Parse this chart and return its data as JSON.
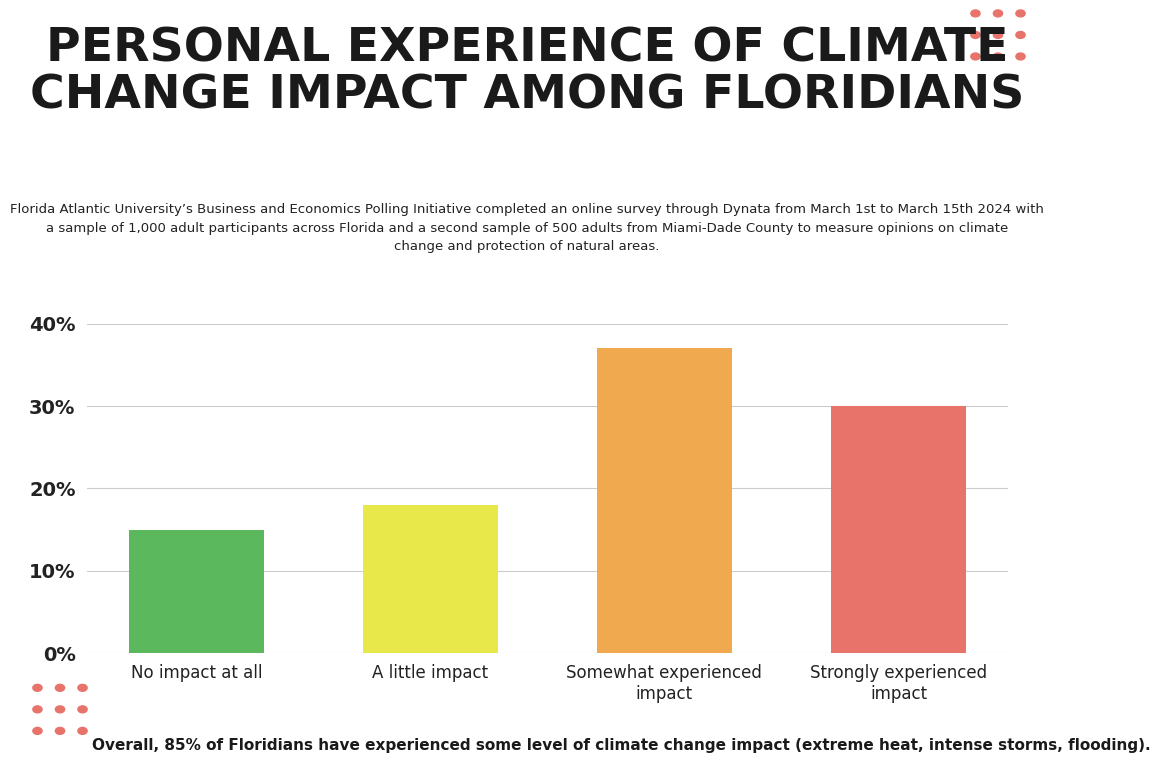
{
  "title": "PERSONAL EXPERIENCE OF CLIMATE\nCHANGE IMPACT AMONG FLORIDIANS",
  "subtitle": "Florida Atlantic University’s Business and Economics Polling Initiative completed an online survey through Dynata from March 1st to March 15th 2024 with\na sample of 1,000 adult participants across Florida and a second sample of 500 adults from Miami-Dade County to measure opinions on climate\nchange and protection of natural areas.",
  "categories": [
    "No impact at all",
    "A little impact",
    "Somewhat experienced\nimpact",
    "Strongly experienced\nimpact"
  ],
  "values": [
    15,
    18,
    37,
    30
  ],
  "bar_colors": [
    "#5cb85c",
    "#e8e84a",
    "#f0a94e",
    "#e8736a"
  ],
  "yticks": [
    0,
    10,
    20,
    30,
    40
  ],
  "ytick_labels": [
    "0%",
    "10%",
    "20%",
    "30%",
    "40%"
  ],
  "ylim": [
    0,
    42
  ],
  "footer": "Overall, 85% of Floridians have experienced some level of climate change impact (extreme heat, intense storms, flooding).",
  "dot_color": "#e8736a",
  "background_color": "#ffffff"
}
